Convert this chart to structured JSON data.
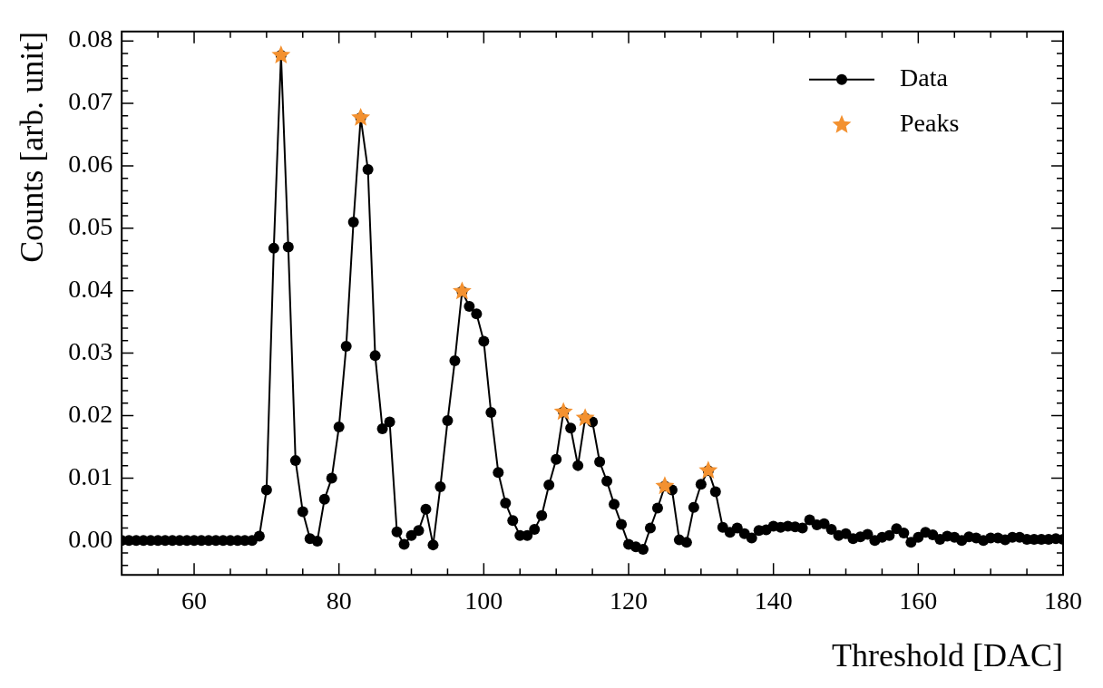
{
  "chart_data": {
    "type": "line",
    "xlabel": "Threshold [DAC]",
    "ylabel": "Counts [arb. unit]",
    "xlim": [
      50,
      180
    ],
    "ylim": [
      -0.0055,
      0.0815
    ],
    "xticks": [
      {
        "value": 55,
        "label": null
      },
      60,
      {
        "value": 65,
        "label": null
      },
      {
        "value": 70,
        "label": null
      },
      {
        "value": 75,
        "label": null
      },
      80,
      {
        "value": 85,
        "label": null
      },
      {
        "value": 90,
        "label": null
      },
      {
        "value": 95,
        "label": null
      },
      100,
      {
        "value": 105,
        "label": null
      },
      {
        "value": 110,
        "label": null
      },
      {
        "value": 115,
        "label": null
      },
      120,
      {
        "value": 125,
        "label": null
      },
      {
        "value": 130,
        "label": null
      },
      {
        "value": 135,
        "label": null
      },
      140,
      {
        "value": 145,
        "label": null
      },
      {
        "value": 150,
        "label": null
      },
      {
        "value": 155,
        "label": null
      },
      160,
      {
        "value": 165,
        "label": null
      },
      {
        "value": 170,
        "label": null
      },
      {
        "value": 175,
        "label": null
      },
      180
    ],
    "yticks": [
      {
        "value": -0.004,
        "label": null
      },
      {
        "value": -0.002,
        "label": null
      },
      {
        "value": 0,
        "label": "0.00"
      },
      {
        "value": 0.002,
        "label": null
      },
      {
        "value": 0.004,
        "label": null
      },
      {
        "value": 0.006,
        "label": null
      },
      {
        "value": 0.008,
        "label": null
      },
      {
        "value": 0.01,
        "label": "0.01"
      },
      {
        "value": 0.012,
        "label": null
      },
      {
        "value": 0.014,
        "label": null
      },
      {
        "value": 0.016,
        "label": null
      },
      {
        "value": 0.018,
        "label": null
      },
      {
        "value": 0.02,
        "label": "0.02"
      },
      {
        "value": 0.022,
        "label": null
      },
      {
        "value": 0.024,
        "label": null
      },
      {
        "value": 0.026,
        "label": null
      },
      {
        "value": 0.028,
        "label": null
      },
      {
        "value": 0.03,
        "label": "0.03"
      },
      {
        "value": 0.032,
        "label": null
      },
      {
        "value": 0.034,
        "label": null
      },
      {
        "value": 0.036,
        "label": null
      },
      {
        "value": 0.038,
        "label": null
      },
      {
        "value": 0.04,
        "label": "0.04"
      },
      {
        "value": 0.042,
        "label": null
      },
      {
        "value": 0.044,
        "label": null
      },
      {
        "value": 0.046,
        "label": null
      },
      {
        "value": 0.048,
        "label": null
      },
      {
        "value": 0.05,
        "label": "0.05"
      },
      {
        "value": 0.052,
        "label": null
      },
      {
        "value": 0.054,
        "label": null
      },
      {
        "value": 0.056,
        "label": null
      },
      {
        "value": 0.058,
        "label": null
      },
      {
        "value": 0.06,
        "label": "0.06"
      },
      {
        "value": 0.062,
        "label": null
      },
      {
        "value": 0.064,
        "label": null
      },
      {
        "value": 0.066,
        "label": null
      },
      {
        "value": 0.068,
        "label": null
      },
      {
        "value": 0.07,
        "label": "0.07"
      },
      {
        "value": 0.072,
        "label": null
      },
      {
        "value": 0.074,
        "label": null
      },
      {
        "value": 0.076,
        "label": null
      },
      {
        "value": 0.078,
        "label": null
      },
      {
        "value": 0.08,
        "label": "0.08"
      }
    ],
    "grid": false,
    "legend": "top right",
    "series": [
      {
        "name": "Data",
        "color": "#000000",
        "marker": "circle",
        "line_style": "solid",
        "x": [
          50,
          51,
          52,
          53,
          54,
          55,
          56,
          57,
          58,
          59,
          60,
          61,
          62,
          63,
          64,
          65,
          66,
          67,
          68,
          69,
          70,
          71,
          72,
          73,
          74,
          75,
          76,
          77,
          78,
          79,
          80,
          81,
          82,
          83,
          84,
          85,
          86,
          87,
          88,
          89,
          90,
          91,
          92,
          93,
          94,
          95,
          96,
          97,
          98,
          99,
          100,
          101,
          102,
          103,
          104,
          105,
          106,
          107,
          108,
          109,
          110,
          111,
          112,
          113,
          114,
          115,
          116,
          117,
          118,
          119,
          120,
          121,
          122,
          123,
          124,
          125,
          126,
          127,
          128,
          129,
          130,
          131,
          132,
          133,
          134,
          135,
          136,
          137,
          138,
          139,
          140,
          141,
          142,
          143,
          144,
          145,
          146,
          147,
          148,
          149,
          150,
          151,
          152,
          153,
          154,
          155,
          156,
          157,
          158,
          159,
          160,
          161,
          162,
          163,
          164,
          165,
          166,
          167,
          168,
          169,
          170,
          171,
          172,
          173,
          174,
          175,
          176,
          177,
          178,
          179,
          180
        ],
        "values": [
          0,
          0,
          0,
          0,
          0,
          0,
          0,
          0,
          0,
          0,
          0,
          0,
          0,
          0,
          0,
          0,
          0,
          0,
          0,
          0.0007,
          0.0081,
          0.0468,
          0.0777,
          0.047,
          0.0128,
          0.0046,
          0.0003,
          -0.0001,
          0.0066,
          0.01,
          0.0182,
          0.0311,
          0.051,
          0.0677,
          0.0594,
          0.0296,
          0.0179,
          0.019,
          0.0014,
          -0.0006,
          0.0008,
          0.0016,
          0.005,
          -0.0007,
          0.0086,
          0.0192,
          0.0288,
          0.0399,
          0.0375,
          0.0363,
          0.0319,
          0.0205,
          0.0109,
          0.006,
          0.0032,
          0.0008,
          0.0008,
          0.0018,
          0.004,
          0.0089,
          0.013,
          0.0206,
          0.018,
          0.012,
          0.0196,
          0.019,
          0.0126,
          0.0095,
          0.0058,
          0.0026,
          -0.0006,
          -0.001,
          -0.0014,
          0.002,
          0.0052,
          0.0087,
          0.0081,
          0.0001,
          -0.0003,
          0.0053,
          0.009,
          0.0112,
          0.0078,
          0.0021,
          0.0013,
          0.002,
          0.0011,
          0.0004,
          0.0016,
          0.0017,
          0.0023,
          0.0021,
          0.0023,
          0.0022,
          0.002,
          0.0033,
          0.0025,
          0.0027,
          0.0018,
          0.0008,
          0.0011,
          0.0003,
          0.0006,
          0.001,
          0,
          0.0005,
          0.0008,
          0.0019,
          0.0012,
          -0.0003,
          0.0005,
          0.0013,
          0.0009,
          0.0002,
          0.0007,
          0.0005,
          0,
          0.0006,
          0.0004,
          0,
          0.0004,
          0.0004,
          0.0001,
          0.0005,
          0.0005,
          0.0002,
          0.0002,
          0.0002,
          0.0002,
          0.0003,
          0.0002
        ]
      },
      {
        "name": "Peaks",
        "type": "scatter",
        "color": "#f39130",
        "marker": "star",
        "x": [
          72,
          83,
          97,
          111,
          114,
          125,
          131
        ],
        "values": [
          0.0777,
          0.0677,
          0.0399,
          0.0206,
          0.0196,
          0.0087,
          0.0112
        ]
      }
    ]
  }
}
